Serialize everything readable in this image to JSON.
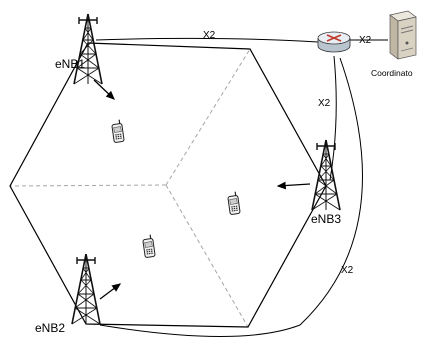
{
  "labels": {
    "enb1": "eNB1",
    "enb2": "eNB2",
    "enb3": "eNB3",
    "coordinator": "Coordinato",
    "x2_top": "X2",
    "x2_router_coord": "X2",
    "x2_router_enb3": "X2",
    "x2_bottom": "X2"
  },
  "icons": {
    "tower": "cell-tower-icon",
    "phone": "mobile-phone-icon",
    "router": "router-icon",
    "server": "server-icon"
  },
  "colors": {
    "line": "#000000",
    "dashed": "#a6a6a6",
    "router_top": "#e8eef4",
    "router_x": "#c0392b",
    "server": "#d9d2c3"
  }
}
